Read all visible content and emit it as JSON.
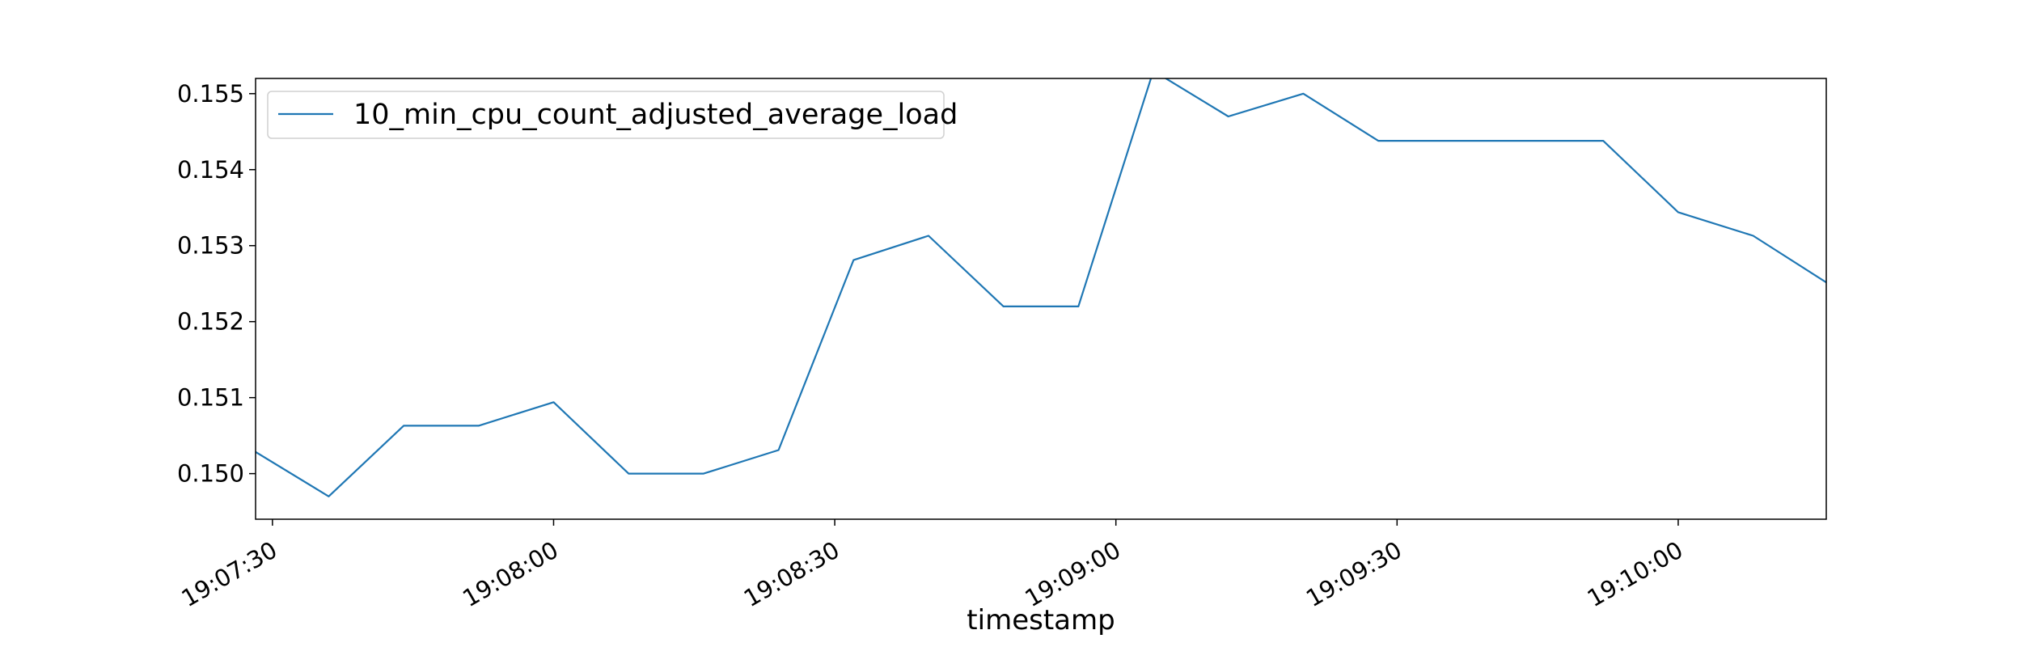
{
  "chart_data": {
    "type": "line",
    "title": "",
    "xlabel": "timestamp",
    "ylabel": "",
    "x_ticks": [
      "19:07:30",
      "19:08:00",
      "19:08:30",
      "19:09:00",
      "19:09:30",
      "19:10:00"
    ],
    "y_ticks": [
      "0.150",
      "0.151",
      "0.152",
      "0.153",
      "0.154",
      "0.155"
    ],
    "xlim": [
      "19:07:28.2",
      "19:10:15.8"
    ],
    "ylim": [
      0.1494,
      0.1552
    ],
    "grid": false,
    "legend_position": "top-left",
    "x": [
      "19:07:28",
      "19:07:36",
      "19:07:44",
      "19:07:52",
      "19:08:00",
      "19:08:08",
      "19:08:16",
      "19:08:24",
      "19:08:32",
      "19:08:40",
      "19:08:48",
      "19:08:56",
      "19:09:04",
      "19:09:12",
      "19:09:20",
      "19:09:28",
      "19:09:36",
      "19:09:44",
      "19:09:52",
      "19:10:00",
      "19:10:08",
      "19:10:16"
    ],
    "series": [
      {
        "name": "10_min_cpu_count_adjusted_average_load",
        "color": "#1f77b4",
        "values": [
          0.1503,
          0.1497,
          0.15063,
          0.15063,
          0.15094,
          0.15,
          0.15,
          0.15031,
          0.15281,
          0.15313,
          0.1522,
          0.1522,
          0.1553,
          0.1547,
          0.155,
          0.15438,
          0.15438,
          0.15438,
          0.15438,
          0.15344,
          0.15313,
          0.1525
        ]
      }
    ]
  }
}
